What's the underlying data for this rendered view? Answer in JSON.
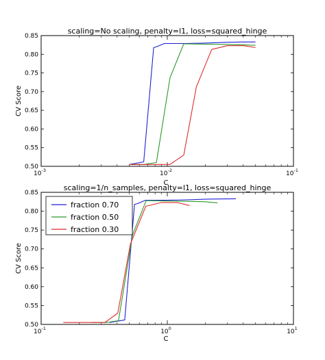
{
  "chart_data": [
    {
      "type": "line",
      "title": "scaling=No scaling, penalty=l1, loss=squared_hinge",
      "xlabel": "C",
      "ylabel": "CV Score",
      "xscale": "log",
      "xlim": [
        0.001,
        0.1
      ],
      "ylim": [
        0.5,
        0.85
      ],
      "xticks": [
        {
          "base": "10",
          "exp": "-3"
        },
        {
          "base": "10",
          "exp": "-2"
        },
        {
          "base": "10",
          "exp": "-1"
        }
      ],
      "yticks": [
        "0.50",
        "0.55",
        "0.60",
        "0.65",
        "0.70",
        "0.75",
        "0.80",
        "0.85"
      ],
      "grid": false,
      "series": [
        {
          "color": "#1f1fd6",
          "x": [
            0.005,
            0.0065,
            0.0078,
            0.0082,
            0.0095,
            0.011,
            0.014,
            0.02,
            0.03,
            0.04,
            0.05
          ],
          "y": [
            0.505,
            0.512,
            0.818,
            0.82,
            0.829,
            0.829,
            0.829,
            0.83,
            0.832,
            0.833,
            0.833
          ]
        },
        {
          "color": "#2a9a2a",
          "x": [
            0.005,
            0.0065,
            0.0082,
            0.0105,
            0.0135,
            0.02,
            0.03,
            0.04,
            0.05
          ],
          "y": [
            0.505,
            0.505,
            0.51,
            0.737,
            0.828,
            0.827,
            0.826,
            0.825,
            0.824
          ]
        },
        {
          "color": "#e02a2a",
          "x": [
            0.005,
            0.008,
            0.0105,
            0.0135,
            0.017,
            0.0225,
            0.03,
            0.04,
            0.05
          ],
          "y": [
            0.505,
            0.505,
            0.505,
            0.53,
            0.713,
            0.813,
            0.823,
            0.823,
            0.818
          ]
        }
      ]
    },
    {
      "type": "line",
      "title": "scaling=1/n_samples, penalty=l1, loss=squared_hinge",
      "xlabel": "C",
      "ylabel": "CV Score",
      "xscale": "log",
      "xlim": [
        0.1,
        10
      ],
      "ylim": [
        0.5,
        0.85
      ],
      "xticks": [
        {
          "base": "10",
          "exp": "-1"
        },
        {
          "base": "10",
          "exp": "0"
        },
        {
          "base": "10",
          "exp": "1"
        }
      ],
      "yticks": [
        "0.50",
        "0.55",
        "0.60",
        "0.65",
        "0.70",
        "0.75",
        "0.80",
        "0.85"
      ],
      "grid": false,
      "legend_position": "top-left",
      "series": [
        {
          "name": "fraction 0.70",
          "color": "#1f1fd6",
          "x": [
            0.35,
            0.46,
            0.55,
            0.58,
            0.67,
            0.78,
            1.0,
            1.4,
            2.1,
            3.5
          ],
          "y": [
            0.505,
            0.512,
            0.818,
            0.82,
            0.829,
            0.829,
            0.829,
            0.83,
            0.832,
            0.833
          ]
        },
        {
          "name": "fraction 0.50",
          "color": "#2a9a2a",
          "x": [
            0.25,
            0.33,
            0.41,
            0.53,
            0.68,
            1.0,
            1.5,
            2.0,
            2.5
          ],
          "y": [
            0.505,
            0.505,
            0.51,
            0.737,
            0.828,
            0.827,
            0.826,
            0.825,
            0.822
          ]
        },
        {
          "name": "fraction 0.30",
          "color": "#e02a2a",
          "x": [
            0.15,
            0.24,
            0.32,
            0.405,
            0.51,
            0.675,
            0.9,
            1.2,
            1.5
          ],
          "y": [
            0.505,
            0.505,
            0.505,
            0.53,
            0.713,
            0.813,
            0.823,
            0.823,
            0.815
          ]
        }
      ]
    }
  ]
}
